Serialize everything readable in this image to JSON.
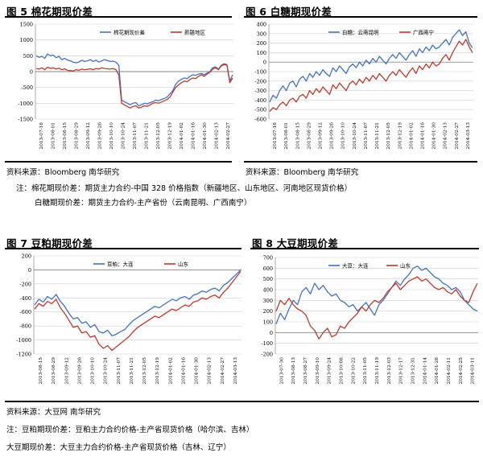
{
  "figures": {
    "f5": {
      "title": "图 5 棉花期现价差"
    },
    "f6": {
      "title": "图 6 白糖期现价差"
    },
    "f7": {
      "title": "图 7 豆粕期现价差"
    },
    "f8": {
      "title": "图 8 大豆期现价差"
    }
  },
  "notes": {
    "src1": "资料来源：Bloomberg 南华研究",
    "src2": "资料来源：Bloomberg 南华研究",
    "note1": "注：棉花期现价差：期货主力合约-中国 328 价格指数（新疆地区、山东地区、河南地区现货价格）",
    "note2": "白糖期现价差：期货主力合约-主产省份（云南昆明、广西南宁）",
    "src3": "资料来源：大豆网 南华研究",
    "note3": "注：豆粕期现价差：豆粕主力合约价格-主产省现货价格（哈尔滨、吉林）",
    "note4": "大豆期现价差：大豆主力合约价格-主产省现货价格（吉林、辽宁）"
  },
  "colors": {
    "blue": "#4472C4",
    "red": "#C0392B",
    "grid": "#d0d0d0"
  },
  "chart_data": [
    {
      "id": "c5",
      "type": "line",
      "ylim": [
        -1500,
        1500
      ],
      "yticks": [
        1500,
        1000,
        500,
        0,
        -500,
        -1000,
        -1500
      ],
      "xlabels": [
        "2013-07-18",
        "2013-08-01",
        "2013-08-15",
        "2013-08-29",
        "2013-09-12",
        "2013-09-26",
        "2013-10-10",
        "2013-10-24",
        "2013-11-07",
        "2013-11-21",
        "2013-12-05",
        "2013-12-19",
        "2014-01-02",
        "2014-01-16",
        "2014-01-30",
        "2014-02-13",
        "2014-02-27"
      ],
      "series": [
        {
          "name": "棉花期现价差",
          "color": "blue",
          "values": [
            500,
            450,
            480,
            420,
            560,
            500,
            520,
            440,
            480,
            380,
            420,
            360,
            340,
            300,
            280,
            300,
            360,
            320,
            340,
            380,
            320,
            360,
            300,
            340,
            380,
            350,
            320,
            330,
            300,
            200,
            -900,
            -950,
            -1000,
            -1050,
            -1000,
            -980,
            -1080,
            -1050,
            -1000,
            -1020,
            -980,
            -950,
            -900,
            -920,
            -880,
            -850,
            -800,
            -700,
            -600,
            -400,
            -300,
            -250,
            -200,
            -220,
            -150,
            -100,
            -120,
            -80,
            -60,
            -100,
            -50,
            0,
            120,
            150,
            80,
            200,
            250,
            220,
            -300,
            -100
          ]
        },
        {
          "name": "新疆地区",
          "color": "red",
          "values": [
            100,
            80,
            120,
            60,
            140,
            100,
            120,
            80,
            110,
            60,
            90,
            40,
            30,
            20,
            60,
            40,
            80,
            60,
            70,
            90,
            60,
            100,
            80,
            120,
            100,
            90,
            80,
            100,
            60,
            -100,
            -1000,
            -1050,
            -1100,
            -1150,
            -1100,
            -1080,
            -1150,
            -1120,
            -1080,
            -1100,
            -1050,
            -1000,
            -980,
            -1000,
            -960,
            -920,
            -880,
            -800,
            -650,
            -500,
            -420,
            -350,
            -300,
            -320,
            -250,
            -200,
            -220,
            -150,
            -100,
            -150,
            -80,
            -20,
            80,
            120,
            60,
            180,
            220,
            200,
            -350,
            -200
          ]
        }
      ]
    },
    {
      "id": "c6",
      "type": "line",
      "ylim": [
        -600,
        400
      ],
      "yticks": [
        400,
        300,
        200,
        100,
        0,
        -100,
        -200,
        -300,
        -400,
        -500,
        -600
      ],
      "xlabels": [
        "2013-07-18",
        "2013-08-01",
        "2013-08-15",
        "2013-08-29",
        "2013-09-12",
        "2013-09-26",
        "2013-10-10",
        "2013-10-24",
        "2013-11-07",
        "2013-11-21",
        "2013-12-05",
        "2013-12-19",
        "2014-01-02",
        "2014-01-16",
        "2014-01-30",
        "2014-02-13",
        "2014-02-27",
        "2014-03-13"
      ],
      "series": [
        {
          "name": "白糖：云南昆明",
          "color": "blue",
          "values": [
            -420,
            -350,
            -380,
            -300,
            -250,
            -300,
            -220,
            -200,
            -260,
            -180,
            -150,
            -200,
            -120,
            -160,
            -100,
            -140,
            -80,
            -120,
            -150,
            -60,
            -100,
            -40,
            -80,
            -120,
            -50,
            -20,
            -60,
            0,
            -40,
            20,
            -20,
            40,
            0,
            60,
            20,
            -20,
            40,
            80,
            40,
            100,
            60,
            20,
            80,
            120,
            60,
            140,
            100,
            160,
            120,
            180,
            140,
            160,
            200,
            240,
            180,
            260,
            300,
            340,
            280,
            320,
            200,
            150
          ]
        },
        {
          "name": "广西南宁",
          "color": "red",
          "values": [
            -520,
            -480,
            -500,
            -450,
            -420,
            -460,
            -400,
            -380,
            -420,
            -360,
            -340,
            -380,
            -300,
            -340,
            -280,
            -320,
            -260,
            -300,
            -340,
            -240,
            -280,
            -220,
            -260,
            -300,
            -230,
            -200,
            -240,
            -180,
            -220,
            -160,
            -200,
            -140,
            -180,
            -120,
            -160,
            -200,
            -140,
            -100,
            -140,
            -80,
            -120,
            -160,
            -100,
            -60,
            -120,
            -40,
            -80,
            -20,
            -60,
            0,
            -40,
            -20,
            40,
            80,
            20,
            100,
            160,
            220,
            180,
            240,
            160,
            100
          ]
        }
      ]
    },
    {
      "id": "c7",
      "type": "line",
      "ylim": [
        -1200,
        200
      ],
      "yticks": [
        200,
        0,
        -200,
        -400,
        -600,
        -800,
        -1000,
        -1200
      ],
      "xlabels": [
        "2013-08-15",
        "2013-08-29",
        "2013-09-12",
        "2013-09-26",
        "2013-10-10",
        "2013-10-24",
        "2013-11-07",
        "2013-11-21",
        "2013-12-05",
        "2013-12-19",
        "2014-01-02",
        "2014-01-16",
        "2014-01-30",
        "2014-02-13",
        "2014-02-27",
        "2014-03-13"
      ],
      "series": [
        {
          "name": "豆粕：大连",
          "color": "blue",
          "values": [
            -500,
            -420,
            -460,
            -380,
            -420,
            -350,
            -450,
            -520,
            -620,
            -700,
            -680,
            -760,
            -740,
            -820,
            -780,
            -880,
            -900,
            -860,
            -940,
            -920,
            -880,
            -850,
            -780,
            -720,
            -680,
            -640,
            -600,
            -560,
            -520,
            -540,
            -500,
            -460,
            -420,
            -440,
            -400,
            -380,
            -420,
            -360,
            -340,
            -300,
            -320,
            -280,
            -260,
            -300,
            -220,
            -180,
            -120,
            -60,
            0
          ]
        },
        {
          "name": "山东",
          "color": "red",
          "values": [
            -560,
            -480,
            -520,
            -450,
            -480,
            -420,
            -540,
            -620,
            -720,
            -820,
            -800,
            -900,
            -880,
            -960,
            -940,
            -1060,
            -1120,
            -1080,
            -1150,
            -1100,
            -1050,
            -1000,
            -950,
            -880,
            -820,
            -780,
            -740,
            -700,
            -660,
            -680,
            -640,
            -600,
            -560,
            -580,
            -540,
            -500,
            -520,
            -460,
            -440,
            -400,
            -420,
            -380,
            -360,
            -400,
            -320,
            -260,
            -180,
            -100,
            -20
          ]
        }
      ]
    },
    {
      "id": "c8",
      "type": "line",
      "ylim": [
        -200,
        700
      ],
      "yticks": [
        700,
        600,
        500,
        400,
        300,
        200,
        100,
        0,
        -100,
        -200
      ],
      "xlabels": [
        "2013-07-30",
        "2013-08-13",
        "2013-08-27",
        "2013-09-10",
        "2013-09-24",
        "2013-10-08",
        "2013-10-22",
        "2013-11-05",
        "2013-11-19",
        "2013-12-03",
        "2013-12-17",
        "2013-12-31",
        "2014-01-14",
        "2014-01-28",
        "2014-02-11",
        "2014-02-25",
        "2014-03-11"
      ],
      "series": [
        {
          "name": "大豆：大连",
          "color": "blue",
          "values": [
            80,
            180,
            120,
            220,
            300,
            260,
            380,
            420,
            360,
            460,
            400,
            440,
            380,
            340,
            360,
            300,
            280,
            240,
            260,
            200,
            240,
            280,
            220,
            160,
            260,
            300,
            360,
            420,
            480,
            440,
            500,
            540,
            600,
            620,
            580,
            600,
            560,
            520,
            500,
            460,
            440,
            400,
            420,
            380,
            300,
            260,
            220,
            200
          ]
        },
        {
          "name": "山东",
          "color": "red",
          "values": [
            200,
            300,
            260,
            320,
            260,
            220,
            200,
            160,
            60,
            20,
            -60,
            0,
            40,
            -40,
            -20,
            60,
            40,
            100,
            140,
            180,
            240,
            200,
            260,
            300,
            280,
            320,
            380,
            420,
            460,
            400,
            440,
            480,
            500,
            520,
            480,
            500,
            460,
            420,
            400,
            420,
            380,
            360,
            400,
            340,
            300,
            280,
            380,
            460
          ]
        }
      ]
    }
  ]
}
